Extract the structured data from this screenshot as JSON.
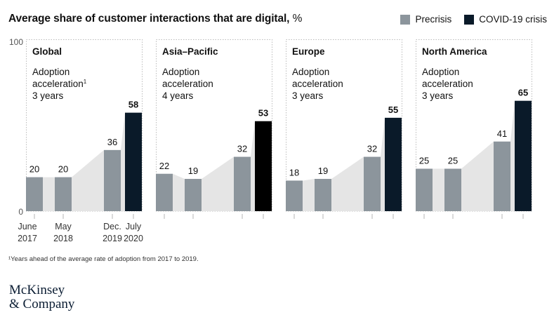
{
  "title": "Average share of customer interactions that are digital,",
  "title_unit": "%",
  "legend": [
    {
      "label": "Precrisis",
      "color": "#8c959c"
    },
    {
      "label": "COVID-19 crisis",
      "color": "#0a1a29"
    }
  ],
  "colors": {
    "precrisis": "#8c959c",
    "crisis": "#0a1a29",
    "area": "#e5e5e5",
    "crisis_alt": "#000000"
  },
  "chart_data": {
    "type": "bar",
    "y_axis": {
      "ticks": [
        "100",
        "0"
      ],
      "ylim": [
        0,
        100
      ]
    },
    "x_tick_labels": [
      {
        "line1": "June",
        "line2": "2017"
      },
      {
        "line1": "May",
        "line2": "2018"
      },
      {
        "line1": "Dec.",
        "line2": "2019"
      },
      {
        "line1": "July",
        "line2": "2020"
      }
    ],
    "panels": [
      {
        "region": "Global",
        "note_line1": "Adoption",
        "note_line2": "acceleration",
        "note_sup": "1",
        "note_line3": "3 years",
        "values": [
          20,
          20,
          36,
          58
        ]
      },
      {
        "region": "Asia–Pacific",
        "note_line1": "Adoption",
        "note_line2": "acceleration",
        "note_sup": "",
        "note_line3": "4 years",
        "values": [
          22,
          19,
          32,
          53
        ]
      },
      {
        "region": "Europe",
        "note_line1": "Adoption",
        "note_line2": "acceleration",
        "note_sup": "",
        "note_line3": "3 years",
        "values": [
          18,
          19,
          32,
          55
        ]
      },
      {
        "region": "North America",
        "note_line1": "Adoption",
        "note_line2": "acceleration",
        "note_sup": "",
        "note_line3": "3 years",
        "values": [
          25,
          25,
          41,
          65
        ]
      }
    ]
  },
  "footnote": "¹Years ahead of the average rate of adoption from 2017 to 2019.",
  "logo": {
    "line1": "McKinsey",
    "line2": "& Company"
  }
}
